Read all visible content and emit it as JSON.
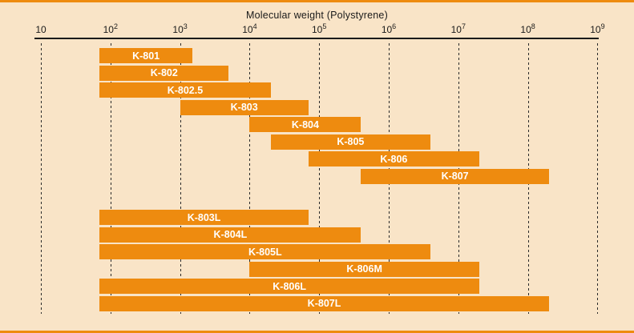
{
  "chart_data": {
    "type": "bar",
    "subtype": "horizontal-range-bars",
    "title": "Molecular weight (Polystyrene)",
    "x_axis": {
      "scale": "log10",
      "min": 10,
      "max": 1000000000,
      "ticks": [
        {
          "base": "10",
          "sup": ""
        },
        {
          "base": "10",
          "sup": "2"
        },
        {
          "base": "10",
          "sup": "3"
        },
        {
          "base": "10",
          "sup": "4"
        },
        {
          "base": "10",
          "sup": "5"
        },
        {
          "base": "10",
          "sup": "6"
        },
        {
          "base": "10",
          "sup": "7"
        },
        {
          "base": "10",
          "sup": "8"
        },
        {
          "base": "10",
          "sup": "9"
        }
      ],
      "grid": "dashed-vertical-per-decade",
      "legend": "none"
    },
    "bars": [
      {
        "label": "K-801",
        "range": [
          70,
          1500
        ],
        "group": 0
      },
      {
        "label": "K-802",
        "range": [
          70,
          5000
        ],
        "group": 0
      },
      {
        "label": "K-802.5",
        "range": [
          70,
          20000
        ],
        "group": 0
      },
      {
        "label": "K-803",
        "range": [
          1000,
          70000
        ],
        "group": 0
      },
      {
        "label": "K-804",
        "range": [
          10000,
          400000
        ],
        "group": 0
      },
      {
        "label": "K-805",
        "range": [
          20000,
          4000000
        ],
        "group": 0
      },
      {
        "label": "K-806",
        "range": [
          70000,
          20000000
        ],
        "group": 0
      },
      {
        "label": "K-807",
        "range": [
          400000,
          200000000
        ],
        "group": 0
      },
      {
        "label": "K-803L",
        "range": [
          70,
          70000
        ],
        "group": 1
      },
      {
        "label": "K-804L",
        "range": [
          70,
          400000
        ],
        "group": 1
      },
      {
        "label": "K-805L",
        "range": [
          70,
          4000000
        ],
        "group": 1
      },
      {
        "label": "K-806M",
        "range": [
          10000,
          20000000
        ],
        "group": 1
      },
      {
        "label": "K-806L",
        "range": [
          70,
          20000000
        ],
        "group": 1
      },
      {
        "label": "K-807L",
        "range": [
          70,
          200000000
        ],
        "group": 1
      }
    ],
    "colors": {
      "background": "#f9e4c7",
      "bar": "#ee8b0f",
      "bar_label": "#ffffff",
      "axis": "#1a1a1a",
      "text": "#1a1a1a",
      "grid": "#2b2b2b",
      "edge_line": "#ee8b0f"
    }
  }
}
